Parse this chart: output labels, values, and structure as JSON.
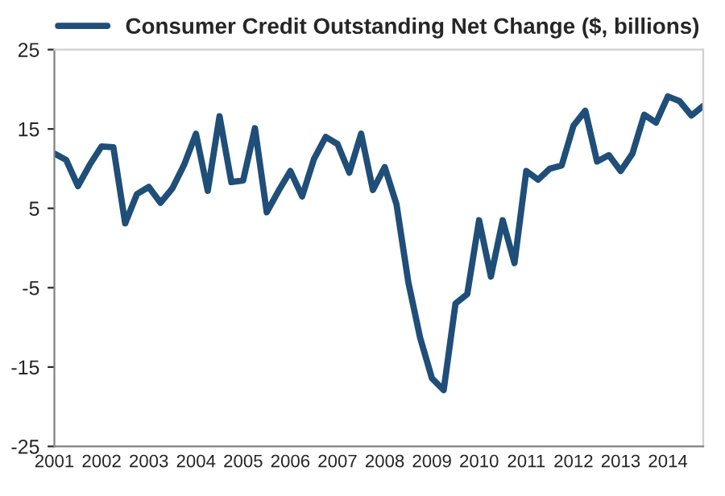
{
  "chart_data": {
    "type": "line",
    "categories": [
      "2001",
      null,
      null,
      null,
      "2002",
      null,
      null,
      null,
      "2003",
      null,
      null,
      null,
      "2004",
      null,
      null,
      null,
      "2005",
      null,
      null,
      null,
      "2006",
      null,
      null,
      null,
      "2007",
      null,
      null,
      null,
      "2008",
      null,
      null,
      null,
      "2009",
      null,
      null,
      null,
      "2010",
      null,
      null,
      null,
      "2011",
      null,
      null,
      null,
      "2012",
      null,
      null,
      null,
      "2013",
      null,
      null,
      null,
      "2014",
      null,
      null,
      null
    ],
    "series": [
      {
        "name": "Consumer Credit Outstanding Net Change ($, billions)",
        "color": "#1f4e79",
        "values": [
          11.9,
          11.1,
          7.8,
          10.5,
          12.8,
          12.7,
          3.1,
          6.8,
          7.7,
          5.7,
          7.5,
          10.5,
          14.4,
          7.2,
          16.6,
          8.3,
          8.5,
          15.1,
          4.5,
          7.2,
          9.7,
          6.5,
          11.2,
          14.0,
          13.1,
          9.5,
          14.4,
          7.3,
          10.2,
          5.5,
          -4.3,
          -11.3,
          -16.4,
          -17.9,
          -7.0,
          -5.8,
          3.5,
          -3.6,
          3.5,
          -1.9,
          9.7,
          8.6,
          10.0,
          10.4,
          15.4,
          17.3,
          10.9,
          11.7,
          9.7,
          11.9,
          16.8,
          15.8,
          19.1,
          18.5,
          16.7,
          17.9
        ]
      }
    ],
    "ylim": [
      -25,
      25
    ],
    "yticks": [
      -25,
      -15,
      -5,
      5,
      15,
      25
    ],
    "grid": false,
    "legend": "top",
    "marker": "none",
    "line_style": "solid"
  }
}
